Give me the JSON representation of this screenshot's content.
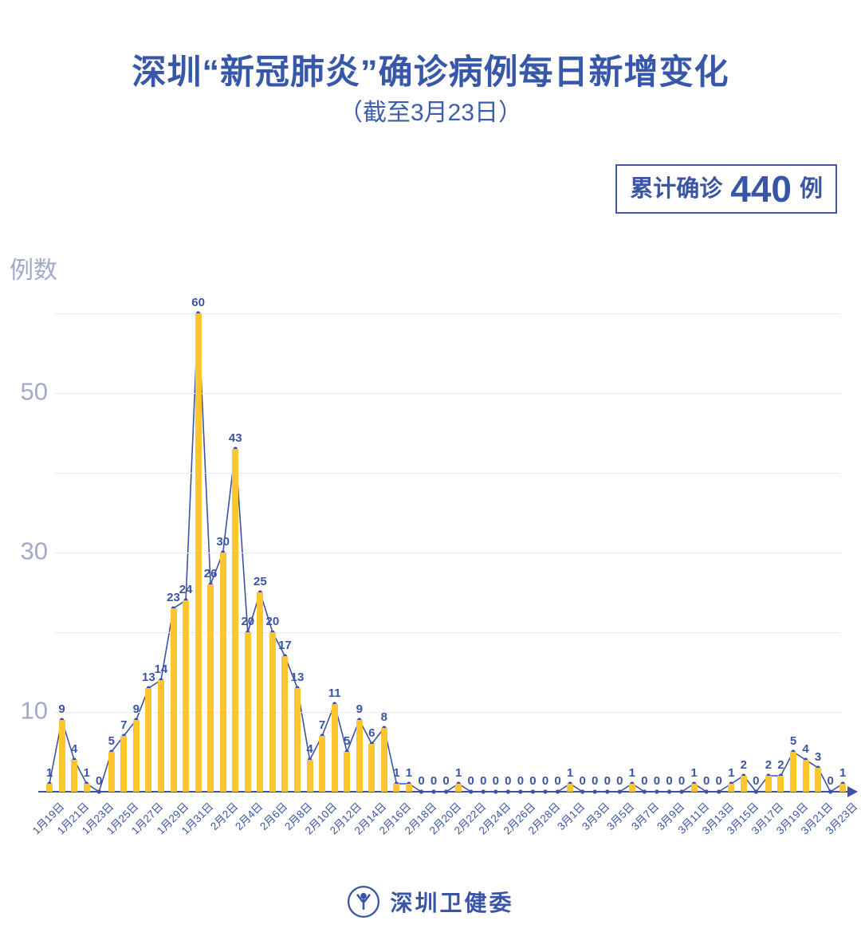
{
  "header": {
    "title": "深圳“新冠肺炎”确诊病例每日新增变化",
    "subtitle": "（截至3月23日）"
  },
  "badge": {
    "label": "累计确诊",
    "value": "440",
    "unit": "例"
  },
  "footer": {
    "org_name": "深圳卫健委"
  },
  "colors": {
    "bar": "#fdc52e",
    "line": "#3f51a5",
    "data_label": "#3b55a5",
    "title": "#3757a8",
    "axis_text": "#a2a9cb",
    "gridline": "#eaecf3"
  },
  "chart_data": {
    "type": "bar",
    "title": "深圳“新冠肺炎”确诊病例每日新增变化",
    "subtitle": "（截至3月23日）",
    "ylabel": "例数",
    "xlabel": "",
    "cumulative_total": 440,
    "ylim": [
      0,
      62
    ],
    "grid": true,
    "legend": false,
    "gridlines": [
      10,
      20,
      30,
      40,
      50,
      60
    ],
    "ytick_labels": [
      10,
      30,
      50
    ],
    "xtick_every": 2,
    "x": [
      "1月19日",
      "1月20日",
      "1月21日",
      "1月22日",
      "1月23日",
      "1月24日",
      "1月25日",
      "1月26日",
      "1月27日",
      "1月28日",
      "1月29日",
      "1月30日",
      "1月31日",
      "2月1日",
      "2月2日",
      "2月3日",
      "2月4日",
      "2月5日",
      "2月6日",
      "2月7日",
      "2月8日",
      "2月9日",
      "2月10日",
      "2月11日",
      "2月12日",
      "2月13日",
      "2月14日",
      "2月15日",
      "2月16日",
      "2月17日",
      "2月18日",
      "2月19日",
      "2月20日",
      "2月21日",
      "2月22日",
      "2月23日",
      "2月24日",
      "2月25日",
      "2月26日",
      "2月27日",
      "2月28日",
      "2月29日",
      "3月1日",
      "3月2日",
      "3月3日",
      "3月4日",
      "3月5日",
      "3月6日",
      "3月7日",
      "3月8日",
      "3月9日",
      "3月10日",
      "3月11日",
      "3月12日",
      "3月13日",
      "3月14日",
      "3月15日",
      "3月16日",
      "3月17日",
      "3月18日",
      "3月19日",
      "3月20日",
      "3月21日",
      "3月22日",
      "3月23日"
    ],
    "values": [
      1,
      9,
      4,
      1,
      0,
      5,
      7,
      9,
      13,
      14,
      23,
      24,
      60,
      26,
      30,
      43,
      20,
      25,
      20,
      17,
      13,
      4,
      7,
      11,
      5,
      9,
      6,
      8,
      1,
      1,
      0,
      0,
      0,
      1,
      0,
      0,
      0,
      0,
      0,
      0,
      0,
      0,
      1,
      0,
      0,
      0,
      0,
      1,
      0,
      0,
      0,
      0,
      1,
      0,
      0,
      1,
      2,
      0,
      2,
      2,
      5,
      4,
      3,
      0,
      1
    ]
  }
}
